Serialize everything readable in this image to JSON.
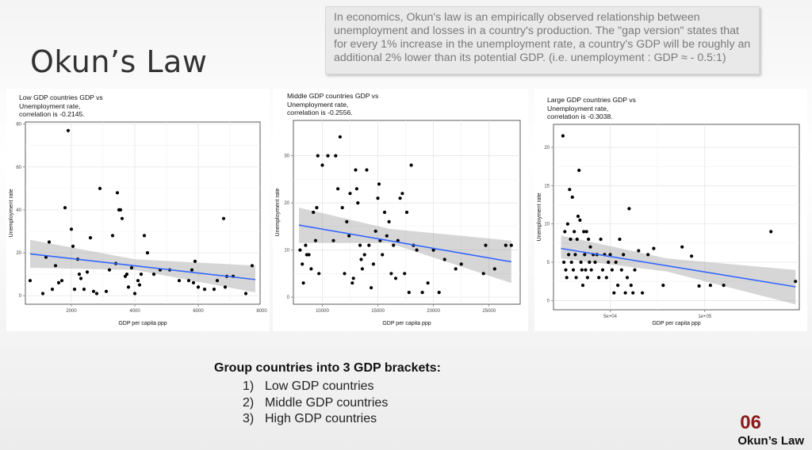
{
  "page": {
    "title": "Okun’s Law",
    "description": "In economics, Okun's law is an empirically observed relationship between unemployment and losses in a country's production. The \"gap version\" states that for every 1% increase in the unemployment rate, a country's GDP will be roughly an additional 2% lower than its potential GDP. (i.e. unemployment : GDP ≈ - 0.5:1)",
    "brackets_heading": "Group countries into 3 GDP brackets:",
    "brackets": [
      {
        "num": "1)",
        "label": "Low GDP countries"
      },
      {
        "num": "2)",
        "label": "Middle GDP countries"
      },
      {
        "num": "3)",
        "label": "High GDP countries"
      }
    ],
    "footer_number": "06",
    "footer_label": "Okun’s Law"
  },
  "chart_data": [
    {
      "type": "scatter",
      "title": "Low GDP countries GDP vs\nUnemployment rate,\ncorrelation is -0.2145.",
      "xlabel": "GDP per capita ppp",
      "ylabel": "Unemployment rate",
      "xlim": [
        550,
        7950
      ],
      "ylim": [
        -4,
        81
      ],
      "xticks": [
        2000,
        4000,
        6000,
        8000
      ],
      "xtick_labels": [
        "2000",
        "4000",
        "6000",
        "8000"
      ],
      "yticks": [
        0,
        20,
        40,
        60,
        80
      ],
      "ytick_labels": [
        "0",
        "20",
        "40",
        "60",
        "80"
      ],
      "grid": true,
      "points": [
        [
          700,
          7
        ],
        [
          1100,
          1
        ],
        [
          1200,
          18
        ],
        [
          1300,
          25
        ],
        [
          1400,
          3
        ],
        [
          1500,
          14
        ],
        [
          1600,
          6
        ],
        [
          1700,
          7
        ],
        [
          1800,
          41
        ],
        [
          1900,
          77
        ],
        [
          2000,
          31
        ],
        [
          2050,
          23
        ],
        [
          2100,
          3
        ],
        [
          2200,
          17
        ],
        [
          2250,
          10
        ],
        [
          2300,
          8
        ],
        [
          2400,
          3
        ],
        [
          2500,
          11
        ],
        [
          2600,
          27
        ],
        [
          2700,
          2
        ],
        [
          2800,
          1
        ],
        [
          2900,
          50
        ],
        [
          3100,
          2
        ],
        [
          3200,
          12
        ],
        [
          3300,
          28
        ],
        [
          3400,
          15
        ],
        [
          3450,
          48
        ],
        [
          3500,
          40
        ],
        [
          3550,
          40
        ],
        [
          3600,
          36
        ],
        [
          3700,
          9
        ],
        [
          3750,
          10
        ],
        [
          3800,
          4
        ],
        [
          3900,
          13
        ],
        [
          4000,
          1
        ],
        [
          4100,
          7
        ],
        [
          4150,
          5
        ],
        [
          4200,
          10
        ],
        [
          4300,
          28
        ],
        [
          4400,
          20
        ],
        [
          4600,
          10
        ],
        [
          4800,
          12
        ],
        [
          5100,
          12
        ],
        [
          5400,
          7
        ],
        [
          5700,
          7
        ],
        [
          5800,
          12
        ],
        [
          5850,
          6
        ],
        [
          5900,
          16
        ],
        [
          6000,
          4
        ],
        [
          6200,
          3
        ],
        [
          6500,
          3
        ],
        [
          6600,
          7
        ],
        [
          6800,
          36
        ],
        [
          6850,
          4
        ],
        [
          6900,
          9
        ],
        [
          7100,
          9
        ],
        [
          7500,
          1
        ],
        [
          7700,
          14
        ]
      ],
      "fit": {
        "x": [
          700,
          7800
        ],
        "y": [
          19.5,
          7.5
        ]
      },
      "band": {
        "x": [
          700,
          4000,
          7800
        ],
        "lower": [
          13,
          12,
          1.5
        ],
        "upper": [
          26,
          17,
          14
        ]
      }
    },
    {
      "type": "scatter",
      "title": "Middle GDP countries GDP vs\nUnemployment rate,\ncorrelation is -0.2556.",
      "xlabel": "GDP per capita ppp",
      "ylabel": "Unemployment rate",
      "xlim": [
        7400,
        27800
      ],
      "ylim": [
        -1.5,
        37.5
      ],
      "xticks": [
        10000,
        15000,
        20000,
        25000
      ],
      "xtick_labels": [
        "10000",
        "15000",
        "20000",
        "25000"
      ],
      "yticks": [
        0,
        10,
        20,
        30
      ],
      "ytick_labels": [
        "0",
        "10",
        "20",
        "30"
      ],
      "grid": true,
      "points": [
        [
          8000,
          10
        ],
        [
          8200,
          7
        ],
        [
          8300,
          3
        ],
        [
          8500,
          11
        ],
        [
          8600,
          9
        ],
        [
          8800,
          9
        ],
        [
          9000,
          6
        ],
        [
          9200,
          18
        ],
        [
          9400,
          12
        ],
        [
          9500,
          19
        ],
        [
          9600,
          30
        ],
        [
          9700,
          5
        ],
        [
          10000,
          28
        ],
        [
          10500,
          30
        ],
        [
          11000,
          12
        ],
        [
          11200,
          30
        ],
        [
          11400,
          23
        ],
        [
          11600,
          34
        ],
        [
          11800,
          19
        ],
        [
          12000,
          5
        ],
        [
          12200,
          16
        ],
        [
          12400,
          13
        ],
        [
          12500,
          22
        ],
        [
          12700,
          3
        ],
        [
          12800,
          4
        ],
        [
          13000,
          27
        ],
        [
          13100,
          23
        ],
        [
          13200,
          20
        ],
        [
          13400,
          11
        ],
        [
          13500,
          8
        ],
        [
          13600,
          6
        ],
        [
          13800,
          9
        ],
        [
          14000,
          27
        ],
        [
          14200,
          11
        ],
        [
          14400,
          2
        ],
        [
          14600,
          7
        ],
        [
          14800,
          14
        ],
        [
          15000,
          21
        ],
        [
          15100,
          24
        ],
        [
          15200,
          12
        ],
        [
          15400,
          9
        ],
        [
          15600,
          18
        ],
        [
          15800,
          13
        ],
        [
          16000,
          16
        ],
        [
          16200,
          5
        ],
        [
          16400,
          11
        ],
        [
          16600,
          4
        ],
        [
          16800,
          12
        ],
        [
          17000,
          21
        ],
        [
          17200,
          22
        ],
        [
          17400,
          5
        ],
        [
          17600,
          18
        ],
        [
          17800,
          1
        ],
        [
          18000,
          28
        ],
        [
          18200,
          11
        ],
        [
          18500,
          10
        ],
        [
          19000,
          1
        ],
        [
          19500,
          3
        ],
        [
          20000,
          10
        ],
        [
          20500,
          1
        ],
        [
          21000,
          8
        ],
        [
          22000,
          6
        ],
        [
          22500,
          7
        ],
        [
          24500,
          5
        ],
        [
          24700,
          11
        ],
        [
          25500,
          6
        ],
        [
          26500,
          11
        ],
        [
          27000,
          11
        ]
      ],
      "fit": {
        "x": [
          7900,
          27000
        ],
        "y": [
          15.3,
          7.5
        ]
      },
      "band": {
        "x": [
          7900,
          16000,
          27000
        ],
        "lower": [
          11.5,
          11.5,
          3
        ],
        "upper": [
          19,
          14.5,
          12
        ]
      }
    },
    {
      "type": "scatter",
      "title": "Large GDP countries GDP vs\nUnemployment rate,\ncorrelation is -0.3038.",
      "xlabel": "GDP per capita ppp",
      "ylabel": "Unemployment rate",
      "xlim": [
        20000,
        150000
      ],
      "ylim": [
        -1.2,
        23
      ],
      "xticks": [
        50000,
        100000
      ],
      "xtick_labels": [
        "5e+04",
        "1e+05"
      ],
      "yticks": [
        0,
        5,
        10,
        15,
        20
      ],
      "ytick_labels": [
        "0",
        "5",
        "10",
        "15",
        "20"
      ],
      "grid": true,
      "points": [
        [
          25000,
          21.5
        ],
        [
          25500,
          5
        ],
        [
          26000,
          9
        ],
        [
          26500,
          4
        ],
        [
          27000,
          3
        ],
        [
          27500,
          10
        ],
        [
          28000,
          6
        ],
        [
          28500,
          14.5
        ],
        [
          29000,
          8
        ],
        [
          29500,
          5
        ],
        [
          30000,
          13.5
        ],
        [
          30500,
          4
        ],
        [
          31000,
          9
        ],
        [
          31500,
          6
        ],
        [
          32000,
          3
        ],
        [
          32500,
          8
        ],
        [
          33000,
          11
        ],
        [
          33500,
          17
        ],
        [
          34000,
          10.5
        ],
        [
          34500,
          5
        ],
        [
          35000,
          4
        ],
        [
          35500,
          2
        ],
        [
          36000,
          9
        ],
        [
          36500,
          6
        ],
        [
          37000,
          4
        ],
        [
          37500,
          9
        ],
        [
          38000,
          3
        ],
        [
          38500,
          8
        ],
        [
          39000,
          5
        ],
        [
          39500,
          7
        ],
        [
          40000,
          4
        ],
        [
          41000,
          6
        ],
        [
          42000,
          5
        ],
        [
          43000,
          6
        ],
        [
          44000,
          3
        ],
        [
          45000,
          8
        ],
        [
          46000,
          4
        ],
        [
          47000,
          6
        ],
        [
          48000,
          3
        ],
        [
          49000,
          5
        ],
        [
          50000,
          6
        ],
        [
          51000,
          4
        ],
        [
          52000,
          1
        ],
        [
          53000,
          5
        ],
        [
          54000,
          2
        ],
        [
          55000,
          8
        ],
        [
          56000,
          4
        ],
        [
          57000,
          6
        ],
        [
          58000,
          1
        ],
        [
          59000,
          3
        ],
        [
          60000,
          12
        ],
        [
          61000,
          2
        ],
        [
          62000,
          1
        ],
        [
          63000,
          4
        ],
        [
          65000,
          6.5
        ],
        [
          67000,
          1
        ],
        [
          70000,
          6
        ],
        [
          73000,
          6.8
        ],
        [
          78000,
          2
        ],
        [
          88000,
          7
        ],
        [
          93000,
          5.8
        ],
        [
          97000,
          1.9
        ],
        [
          103000,
          2
        ],
        [
          110000,
          2
        ],
        [
          135000,
          9
        ],
        [
          148000,
          2.5
        ]
      ],
      "fit": {
        "x": [
          24000,
          148000
        ],
        "y": [
          6.8,
          1.8
        ]
      },
      "band": {
        "x": [
          24000,
          80000,
          148000
        ],
        "lower": [
          5.5,
          3.8,
          -0.5
        ],
        "upper": [
          8.5,
          5.5,
          4
        ]
      }
    }
  ]
}
